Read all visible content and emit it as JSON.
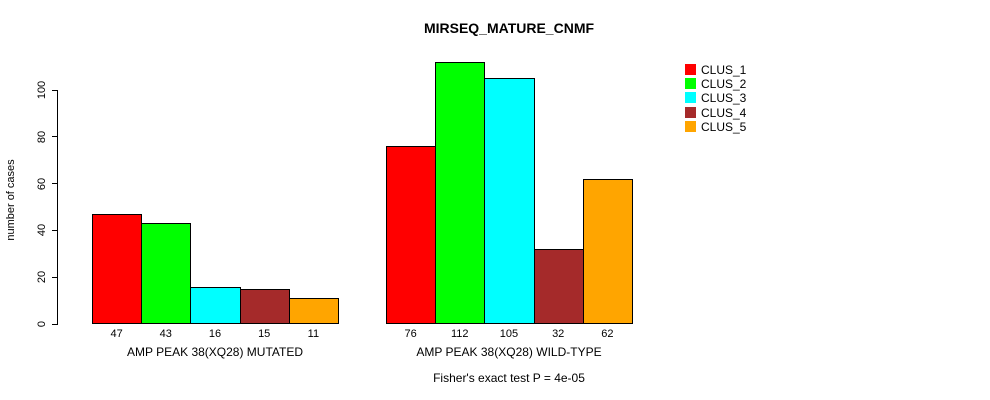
{
  "chart_data": {
    "type": "bar",
    "title": "MIRSEQ_MATURE_CNMF",
    "ylabel": "number of cases",
    "xlabel": "",
    "annotation": "Fisher's exact test P = 4e-05",
    "yticks": [
      0,
      20,
      40,
      60,
      80,
      100
    ],
    "ylim": [
      0,
      115
    ],
    "grid": false,
    "legend_position": "right-outside",
    "show_bar_values": true,
    "categories": [
      "AMP PEAK 38(XQ28) MUTATED",
      "AMP PEAK 38(XQ28) WILD-TYPE"
    ],
    "series": [
      {
        "name": "CLUS_1",
        "color": "#ff0000",
        "values": [
          47,
          76
        ]
      },
      {
        "name": "CLUS_2",
        "color": "#00ff00",
        "values": [
          43,
          112
        ]
      },
      {
        "name": "CLUS_3",
        "color": "#00ffff",
        "values": [
          16,
          105
        ]
      },
      {
        "name": "CLUS_4",
        "color": "#a52a2a",
        "values": [
          15,
          32
        ]
      },
      {
        "name": "CLUS_5",
        "color": "#ffa500",
        "values": [
          11,
          62
        ]
      }
    ]
  }
}
